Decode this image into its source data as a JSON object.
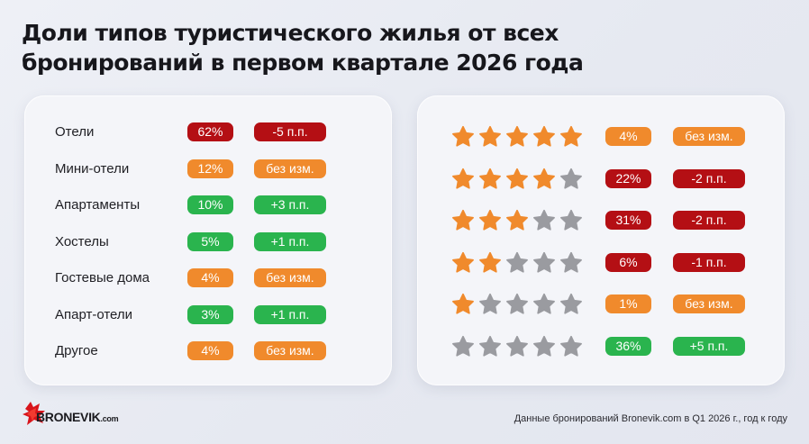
{
  "title": {
    "line1": "Доли типов туристического жилья от всех",
    "line2": "бронирований в первом квартале 2026 года"
  },
  "colors": {
    "red": "#b40f14",
    "orange": "#f08a2c",
    "green": "#2ab44e",
    "star_filled": "#f08a2c",
    "star_empty": "#9a9ba0"
  },
  "accommodation_types": [
    {
      "label": "Отели",
      "share": "62%",
      "share_color": "red",
      "change": "-5 п.п.",
      "change_color": "red"
    },
    {
      "label": "Мини-отели",
      "share": "12%",
      "share_color": "orange",
      "change": "без изм.",
      "change_color": "orange"
    },
    {
      "label": "Апартаменты",
      "share": "10%",
      "share_color": "green",
      "change": "+3 п.п.",
      "change_color": "green"
    },
    {
      "label": "Хостелы",
      "share": "5%",
      "share_color": "green",
      "change": "+1 п.п.",
      "change_color": "green"
    },
    {
      "label": "Гостевые дома",
      "share": "4%",
      "share_color": "orange",
      "change": "без изм.",
      "change_color": "orange"
    },
    {
      "label": "Апарт-отели",
      "share": "3%",
      "share_color": "green",
      "change": "+1 п.п.",
      "change_color": "green"
    },
    {
      "label": "Другое",
      "share": "4%",
      "share_color": "orange",
      "change": "без изм.",
      "change_color": "orange"
    }
  ],
  "star_ratings": [
    {
      "stars": 5,
      "share": "4%",
      "share_color": "orange",
      "change": "без изм.",
      "change_color": "orange"
    },
    {
      "stars": 4,
      "share": "22%",
      "share_color": "red",
      "change": "-2 п.п.",
      "change_color": "red"
    },
    {
      "stars": 3,
      "share": "31%",
      "share_color": "red",
      "change": "-2 п.п.",
      "change_color": "red"
    },
    {
      "stars": 2,
      "share": "6%",
      "share_color": "red",
      "change": "-1 п.п.",
      "change_color": "red"
    },
    {
      "stars": 1,
      "share": "1%",
      "share_color": "orange",
      "change": "без изм.",
      "change_color": "orange"
    },
    {
      "stars": 0,
      "share": "36%",
      "share_color": "green",
      "change": "+5 п.п.",
      "change_color": "green"
    }
  ],
  "logo": {
    "name": "BRONEVIK",
    "suffix": ".com",
    "icon": "bronevik-logo-icon"
  },
  "footer_note": "Данные бронирований Bronevik.com в Q1 2026 г., год к году"
}
